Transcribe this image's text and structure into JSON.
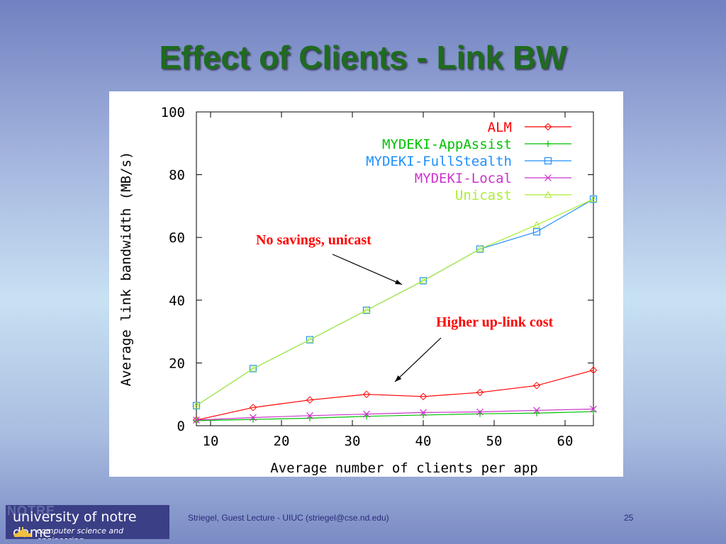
{
  "slide": {
    "title": "Effect of Clients - Link BW",
    "footer_text": "Striegel, Guest Lecture - UIUC (striegel@cse.nd.edu)",
    "page_number": "25"
  },
  "logo": {
    "watermark": "NOTRE",
    "line1": "university of notre dame",
    "line2": "computer science and engineering"
  },
  "colors": {
    "title": "#1f6b1f",
    "annotation": "#ff0000"
  },
  "chart_data": {
    "type": "line",
    "title": "",
    "xlabel": "Average number of clients per app",
    "ylabel": "Average link bandwidth (MB/s)",
    "xlim": [
      8,
      64
    ],
    "ylim": [
      0,
      100
    ],
    "xticks": [
      10,
      20,
      30,
      40,
      50,
      60
    ],
    "yticks": [
      0,
      20,
      40,
      60,
      80,
      100
    ],
    "grid": false,
    "legend_position": "top-right",
    "x": [
      8,
      16,
      24,
      32,
      40,
      48,
      56,
      64
    ],
    "series": [
      {
        "name": "ALM",
        "color": "#ff0000",
        "marker": "diamond",
        "values": [
          1.8,
          5.8,
          8.2,
          10.0,
          9.3,
          10.6,
          12.8,
          17.7
        ]
      },
      {
        "name": "MYDEKI-AppAssist",
        "color": "#00c000",
        "marker": "plus",
        "values": [
          1.6,
          2.0,
          2.4,
          3.0,
          3.4,
          3.8,
          4.0,
          4.5
        ]
      },
      {
        "name": "MYDEKI-FullStealth",
        "color": "#1e90ff",
        "marker": "square",
        "values": [
          6.4,
          18.2,
          27.4,
          36.8,
          46.2,
          56.3,
          61.8,
          72.2
        ]
      },
      {
        "name": "MYDEKI-Local",
        "color": "#cc33cc",
        "marker": "x",
        "values": [
          1.8,
          2.6,
          3.2,
          3.7,
          4.2,
          4.4,
          4.9,
          5.3
        ]
      },
      {
        "name": "Unicast",
        "color": "#aaee33",
        "marker": "triangle",
        "values": [
          6.4,
          18.2,
          27.4,
          36.8,
          46.2,
          56.3,
          64.0,
          72.2
        ]
      }
    ],
    "annotations": [
      {
        "text": "No savings, unicast",
        "target": [
          37,
          45
        ]
      },
      {
        "text": "Higher up-link cost",
        "target": [
          36,
          14
        ]
      }
    ]
  }
}
